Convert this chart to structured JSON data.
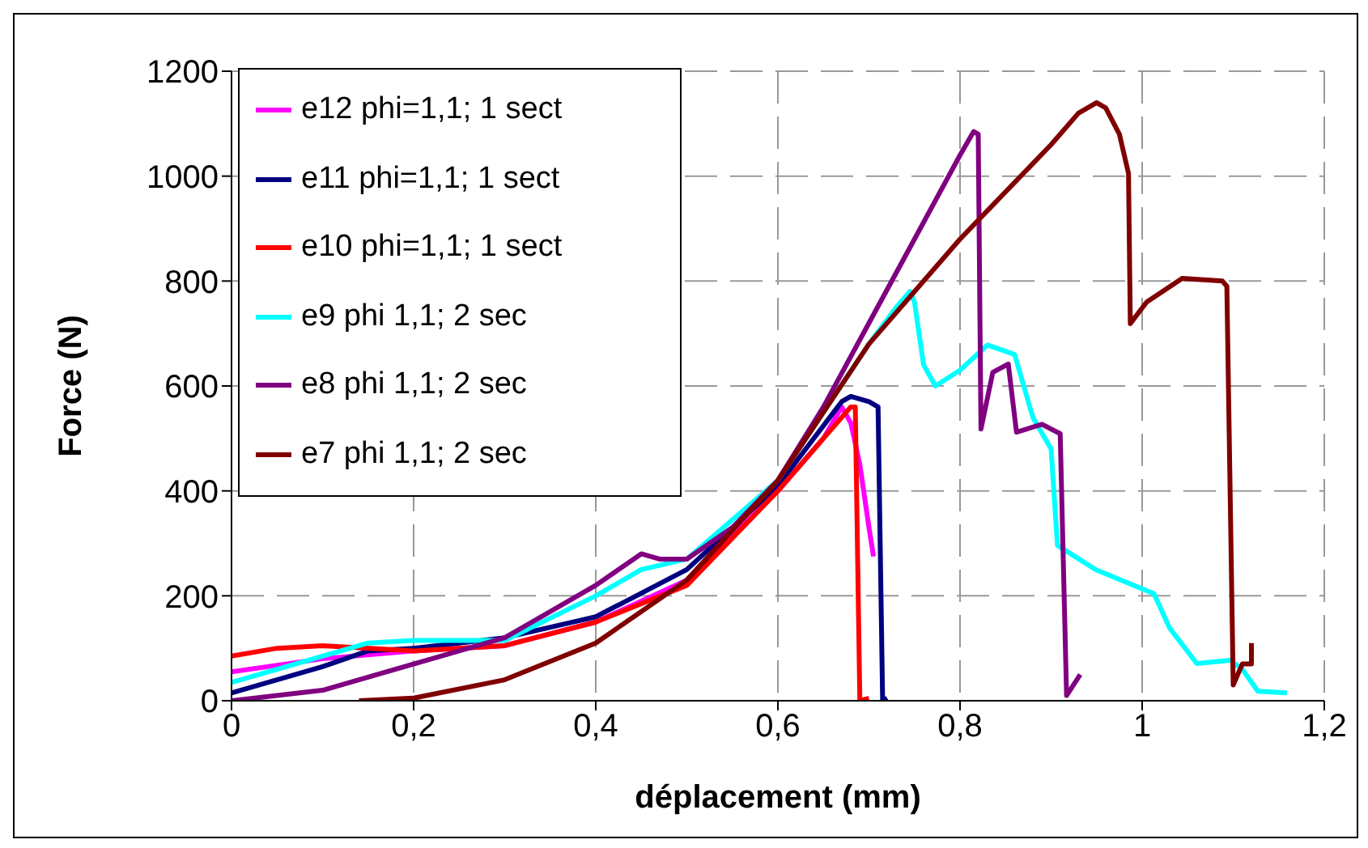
{
  "chart_data": {
    "type": "line",
    "xlabel": "déplacement (mm)",
    "ylabel": "Force (N)",
    "xlim": [
      0,
      1.2
    ],
    "xticks": [
      0,
      {
        "value": 0.2,
        "label": "0,2"
      },
      {
        "value": 0.4,
        "label": "0,4"
      },
      {
        "value": 0.6,
        "label": "0,6"
      },
      {
        "value": 0.8,
        "label": "0,8"
      },
      1,
      {
        "value": 1.2,
        "label": "1,2"
      }
    ],
    "ylim": [
      0,
      1200
    ],
    "yticks": [
      0,
      200,
      400,
      600,
      800,
      1000,
      1200
    ],
    "grid": true,
    "legend": "top left",
    "marker": "none",
    "line_style": "solid",
    "series": [
      {
        "name": "e12 phi=1,1; 1 sect",
        "color": "#ff00ff",
        "x": [
          0,
          0.1,
          0.2,
          0.3,
          0.4,
          0.5,
          0.6,
          0.65,
          0.67,
          0.68,
          0.69,
          0.7,
          0.705
        ],
        "values": [
          55,
          80,
          95,
          105,
          150,
          230,
          400,
          500,
          560,
          530,
          450,
          330,
          275
        ]
      },
      {
        "name": "e11 phi=1,1; 1 sect",
        "color": "#000080",
        "x": [
          0,
          0.1,
          0.15,
          0.2,
          0.3,
          0.4,
          0.5,
          0.6,
          0.67,
          0.68,
          0.7,
          0.71,
          0.715,
          0.72
        ],
        "values": [
          15,
          65,
          95,
          100,
          120,
          160,
          250,
          410,
          570,
          580,
          570,
          560,
          0,
          5
        ]
      },
      {
        "name": "e10 phi=1,1; 1 sect",
        "color": "#ff0000",
        "x": [
          0,
          0.05,
          0.1,
          0.2,
          0.3,
          0.4,
          0.5,
          0.6,
          0.65,
          0.68,
          0.685,
          0.69,
          0.7
        ],
        "values": [
          85,
          100,
          105,
          95,
          105,
          150,
          220,
          400,
          500,
          560,
          560,
          0,
          5
        ]
      },
      {
        "name": "e9 phi 1,1; 2 sec",
        "color": "#00ffff",
        "x": [
          0,
          0.1,
          0.15,
          0.2,
          0.3,
          0.4,
          0.45,
          0.5,
          0.6,
          0.65,
          0.7,
          0.73,
          0.745,
          0.75,
          0.76,
          0.773,
          0.8,
          0.83,
          0.86,
          0.88,
          0.9,
          0.907,
          0.949,
          1.013,
          1.03,
          1.06,
          1.097,
          1.11,
          1.127,
          1.159
        ],
        "values": [
          35,
          85,
          110,
          115,
          115,
          200,
          250,
          270,
          420,
          550,
          680,
          750,
          780,
          760,
          640,
          600,
          630,
          678,
          660,
          540,
          480,
          296,
          250,
          204,
          139,
          71,
          77,
          60,
          18,
          15
        ]
      },
      {
        "name": "e8 phi 1,1; 2 sec",
        "color": "#800080",
        "x": [
          0,
          0.1,
          0.2,
          0.3,
          0.4,
          0.45,
          0.47,
          0.5,
          0.55,
          0.6,
          0.65,
          0.7,
          0.75,
          0.8,
          0.815,
          0.82,
          0.823,
          0.836,
          0.853,
          0.862,
          0.89,
          0.91,
          0.917,
          0.932
        ],
        "values": [
          0,
          20,
          70,
          120,
          220,
          280,
          270,
          270,
          330,
          420,
          560,
          720,
          880,
          1040,
          1085,
          1080,
          518,
          626,
          642,
          512,
          527,
          509,
          10,
          50
        ]
      },
      {
        "name": "e7 phi 1,1; 2 sec",
        "color": "#800000",
        "x": [
          0.14,
          0.2,
          0.3,
          0.4,
          0.5,
          0.6,
          0.7,
          0.8,
          0.9,
          0.93,
          0.95,
          0.96,
          0.975,
          0.985,
          0.987,
          1.005,
          1.044,
          1.088,
          1.093,
          1.1,
          1.11,
          1.12,
          1.12
        ],
        "values": [
          0,
          5,
          40,
          110,
          230,
          420,
          680,
          880,
          1060,
          1120,
          1140,
          1130,
          1080,
          1005,
          719,
          760,
          805,
          800,
          790,
          30,
          70,
          70,
          110
        ]
      }
    ]
  }
}
